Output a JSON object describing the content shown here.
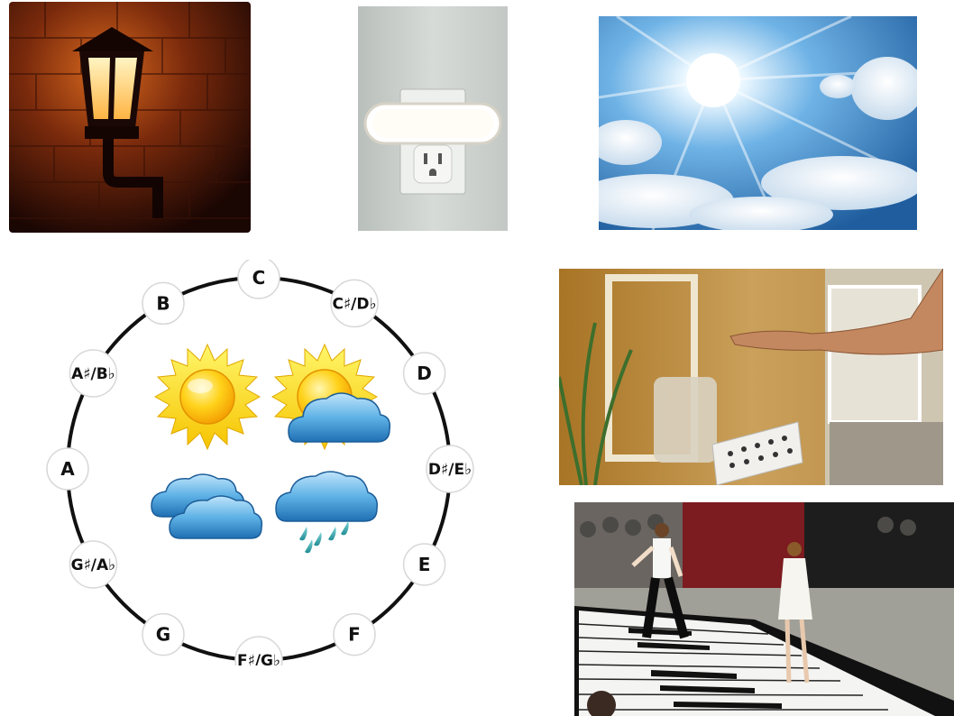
{
  "circle_of_fifths": {
    "notes": [
      "C",
      "C♯/D♭",
      "D",
      "D♯/E♭",
      "E",
      "F",
      "F♯/G♭",
      "G",
      "G♯/A♭",
      "A",
      "A♯/B♭",
      "B"
    ]
  },
  "weather_icons": [
    "sun-icon",
    "partly-cloudy-icon",
    "cloudy-icon",
    "rain-icon"
  ],
  "photos": [
    "wall-lantern-photo",
    "night-light-outlet-photo",
    "sunny-sky-photo",
    "hand-gesture-photo",
    "floor-piano-photo"
  ]
}
